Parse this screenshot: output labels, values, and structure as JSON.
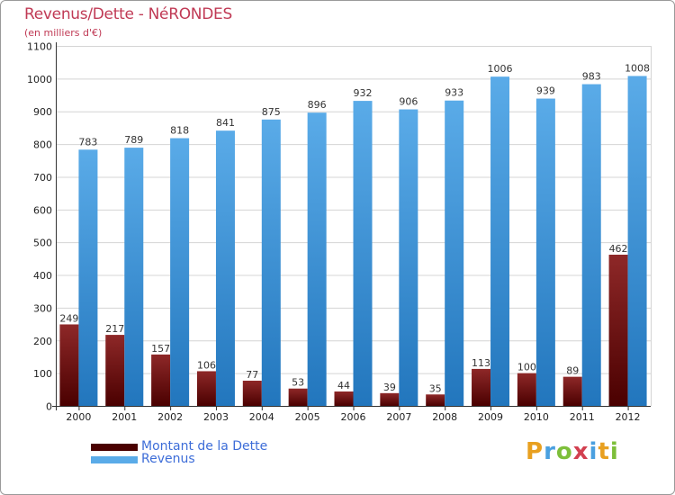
{
  "colors": {
    "title": "#c03a55",
    "debt_top": "#8e2828",
    "debt_bottom": "#4a0000",
    "revenue_top": "#5aabe8",
    "revenue_bottom": "#2276bd",
    "grid": "#d4d4d4",
    "legend_text": "#3d6dd8"
  },
  "logo": {
    "letters": [
      "P",
      "r",
      "o",
      "x",
      "i",
      "t",
      "i"
    ],
    "colors": [
      "#e8a020",
      "#4aa0e0",
      "#7dbf3a",
      "#d24050",
      "#4aa0e0",
      "#e8a020",
      "#7dbf3a"
    ]
  },
  "chart_data": {
    "type": "bar",
    "title": "Revenus/Dette - NéRONDES",
    "subtitle": "(en milliers d'€)",
    "xlabel": "",
    "ylabel": "",
    "ylim": [
      0,
      1100
    ],
    "yticks": [
      0,
      100,
      200,
      300,
      400,
      500,
      600,
      700,
      800,
      900,
      1000,
      1100
    ],
    "grid": true,
    "legend_position": "bottom-left",
    "categories": [
      "2000",
      "2001",
      "2002",
      "2003",
      "2004",
      "2005",
      "2006",
      "2007",
      "2008",
      "2009",
      "2010",
      "2011",
      "2012"
    ],
    "series": [
      {
        "name": "Montant de la Dette",
        "values": [
          249,
          217,
          157,
          106,
          77,
          53,
          44,
          39,
          35,
          113,
          100,
          89,
          462
        ]
      },
      {
        "name": "Revenus",
        "values": [
          783,
          789,
          818,
          841,
          875,
          896,
          932,
          906,
          933,
          1006,
          939,
          983,
          1008
        ]
      }
    ]
  }
}
